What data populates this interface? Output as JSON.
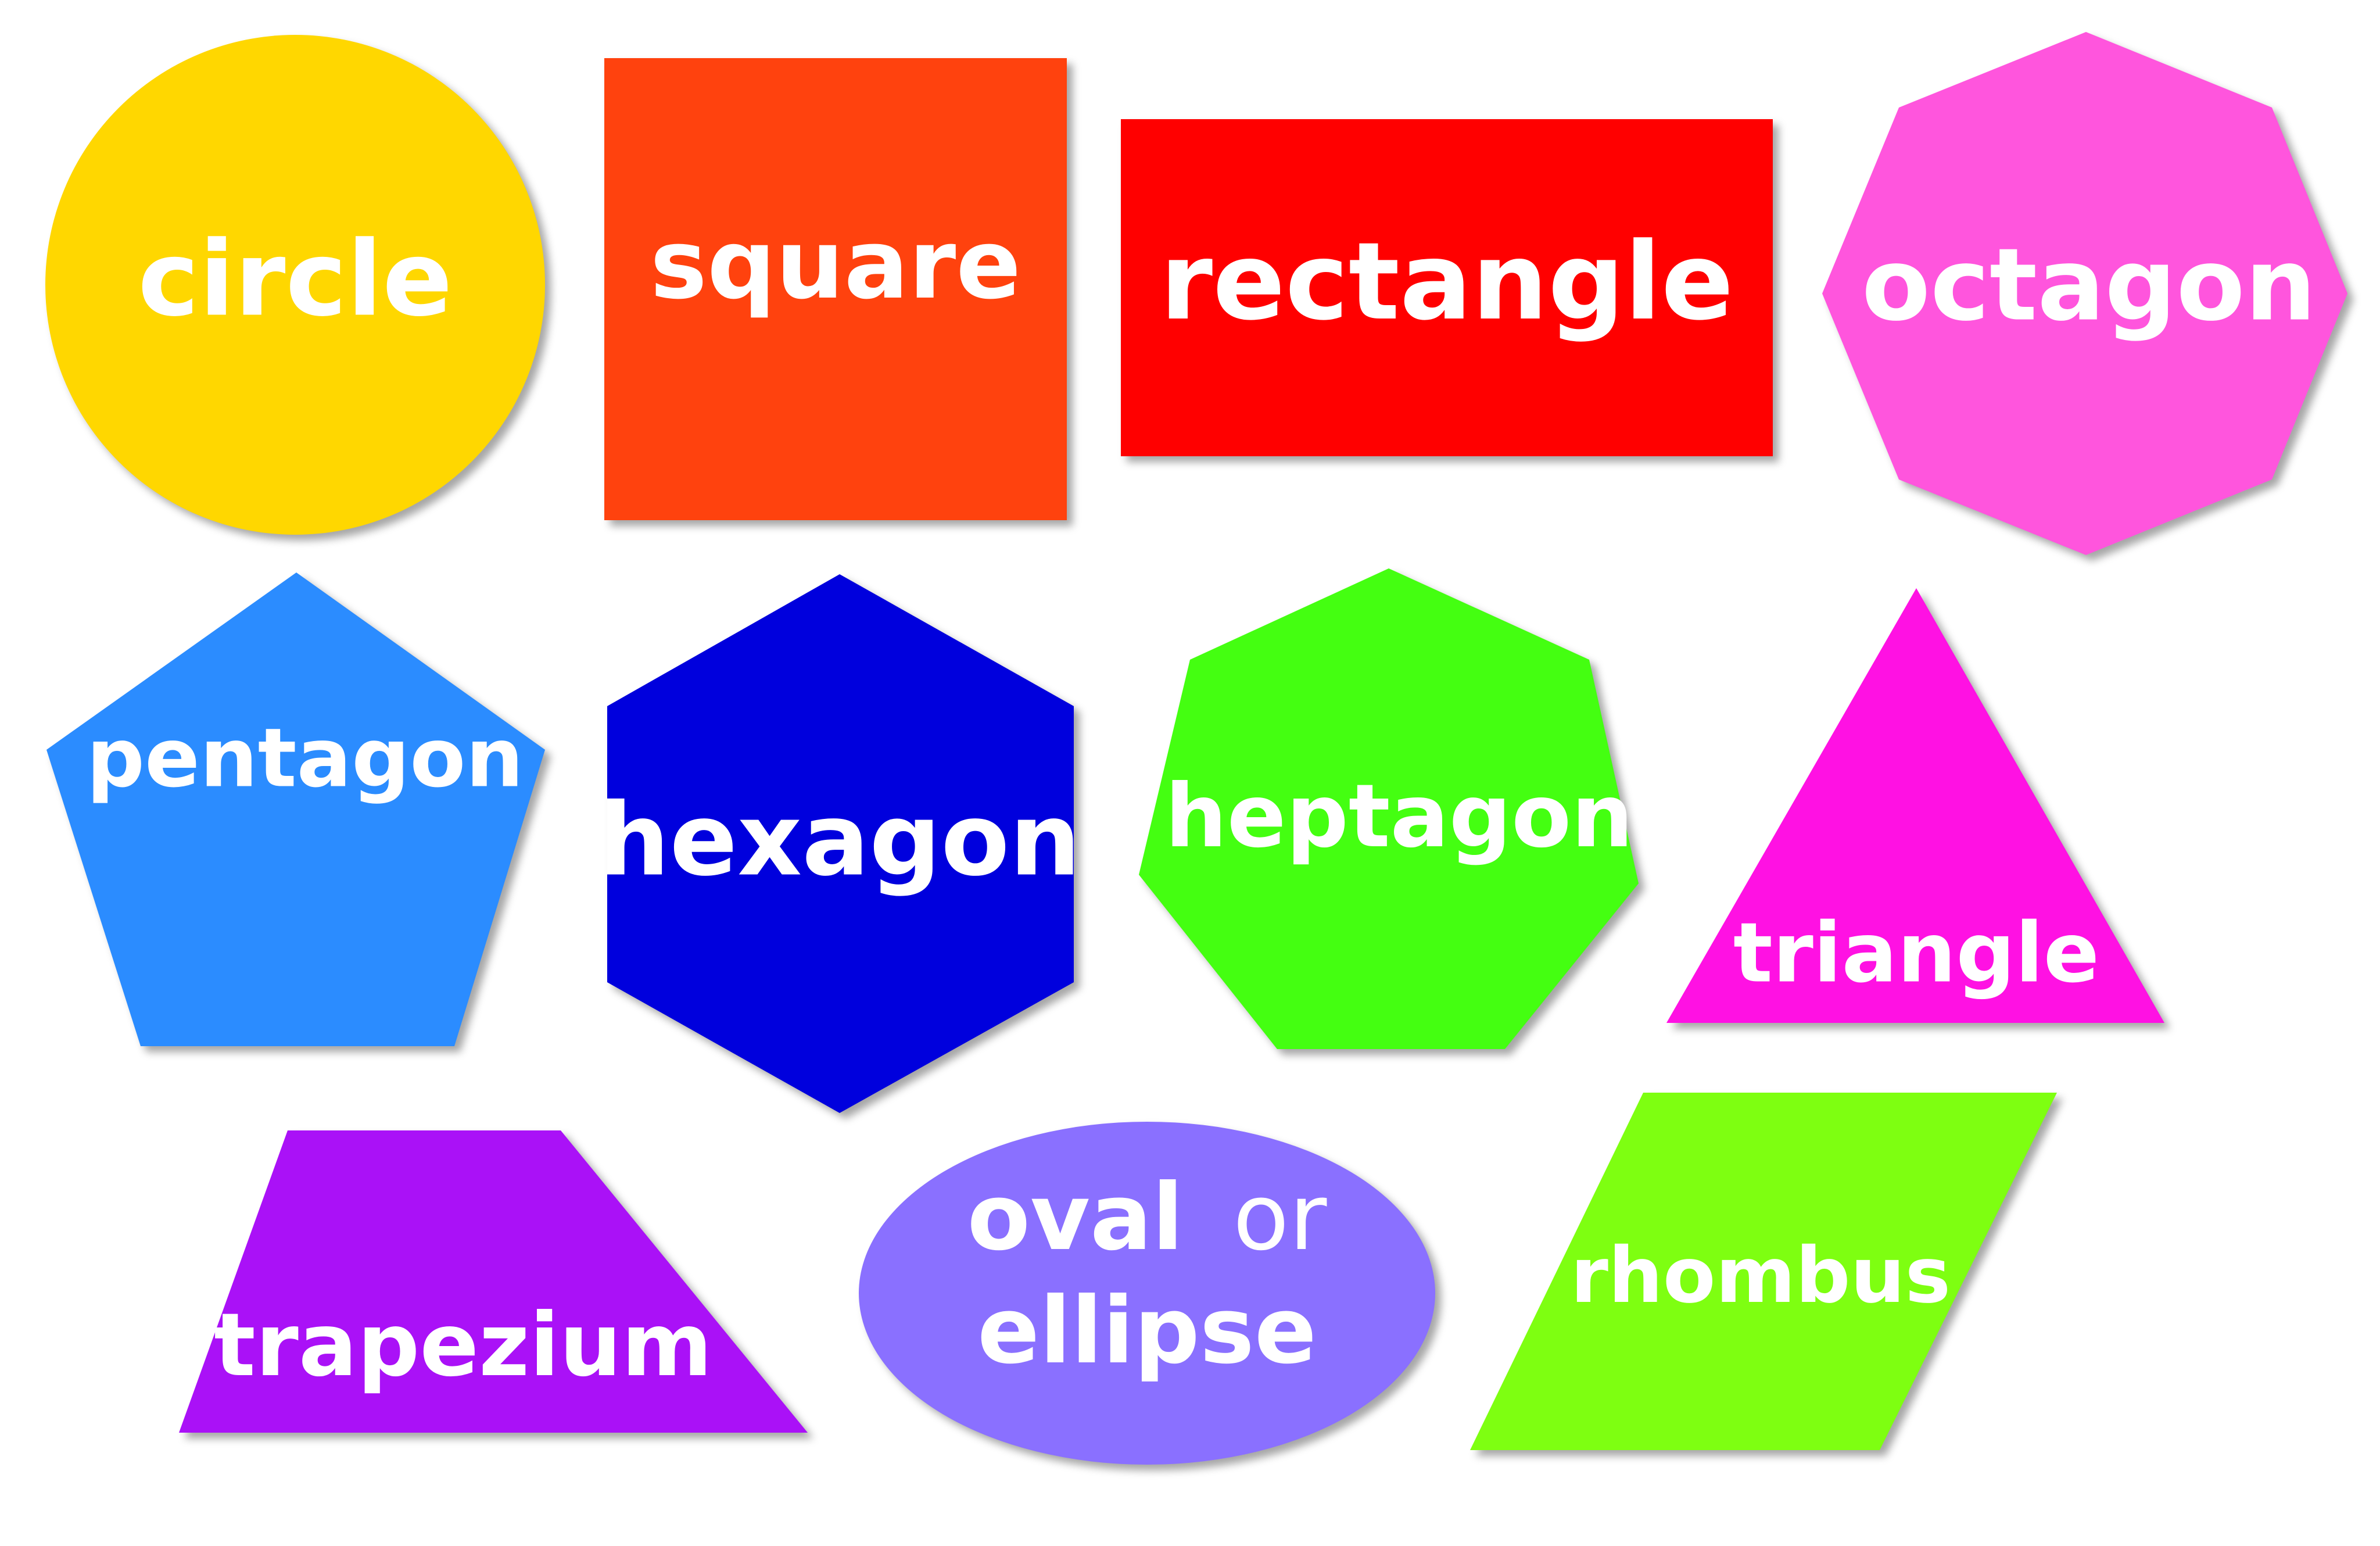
{
  "shapes": [
    {
      "id": "circle",
      "label": "circle",
      "color": "#FFD700"
    },
    {
      "id": "square",
      "label": "square",
      "color": "#FF420E"
    },
    {
      "id": "rectangle",
      "label": "rectangle",
      "color": "#FF0000"
    },
    {
      "id": "octagon",
      "label": "octagon",
      "color": "#FF55DD"
    },
    {
      "id": "pentagon",
      "label": "pentagon",
      "color": "#2B8CFF"
    },
    {
      "id": "hexagon",
      "label": "hexagon",
      "color": "#0000DD"
    },
    {
      "id": "heptagon",
      "label": "heptagon",
      "color": "#44FF11"
    },
    {
      "id": "triangle",
      "label": "triangle",
      "color": "#FF11E3"
    },
    {
      "id": "trapezium",
      "label": "trapezium",
      "color": "#AA11F7"
    },
    {
      "id": "oval",
      "label_line1_bold": "oval",
      "label_line1_light": "or",
      "label_line2": "ellipse",
      "color": "#8A70FF"
    },
    {
      "id": "rhombus",
      "label": "rhombus",
      "color": "#7EFF11"
    }
  ]
}
